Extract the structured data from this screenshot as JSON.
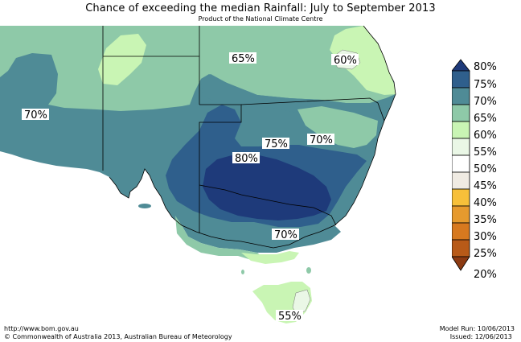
{
  "title": "Chance of exceeding the median Rainfall: July to September 2013",
  "subtitle": "Product of the National Climate Centre",
  "map_labels": {
    "nsw_north": "65%",
    "qld_coast": "60%",
    "wa_east": "70%",
    "inland_75": "75%",
    "nsw_70": "70%",
    "core_80": "80%",
    "vic_70": "70%",
    "tas_55": "55%"
  },
  "legend": {
    "colors": {
      "80": "#1e3a7a",
      "75": "#2f5f8c",
      "70": "#4f8b96",
      "65": "#8ec9a8",
      "60": "#c9f5b4",
      "55": "#eaf7e6",
      "50": "#ffffff",
      "45": "#f0ebe3",
      "40": "#f7c03a",
      "35": "#e69a2e",
      "30": "#d7791f",
      "25": "#b85a18",
      "20": "#8c3a12"
    },
    "labels": [
      "80%",
      "75%",
      "70%",
      "65%",
      "60%",
      "55%",
      "50%",
      "45%",
      "40%",
      "35%",
      "30%",
      "25%",
      "20%"
    ]
  },
  "footer": {
    "url": "http://www.bom.gov.au",
    "copyright": "©  Commonwealth of Australia 2013, Australian Bureau of Meteorology",
    "model_run": "Model Run: 10/06/2013",
    "issued": "Issued: 12/06/2013"
  }
}
